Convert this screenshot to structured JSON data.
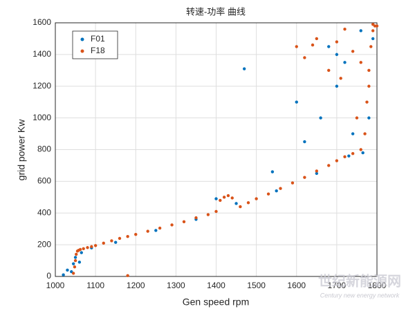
{
  "chart_data": {
    "type": "scatter",
    "title": "转速-功率 曲线",
    "x_label": "Gen speed rpm",
    "y_label": "grid power Kw",
    "xlim": [
      1000,
      1800
    ],
    "xticks": [
      1000,
      1100,
      1200,
      1300,
      1400,
      1500,
      1600,
      1700,
      1800
    ],
    "ylim": [
      0,
      1600
    ],
    "yticks": [
      0,
      200,
      400,
      600,
      800,
      1000,
      1200,
      1400,
      1600
    ],
    "grid": true,
    "legend": "upper-left",
    "watermark": [
      "世纪新能源网",
      "Century new energy network"
    ],
    "series": [
      {
        "name": "F01",
        "color": "#0072bd",
        "x": [
          1040,
          1045,
          1050,
          1060,
          1065,
          1090,
          1150,
          1250,
          1350,
          1450,
          1550,
          1650,
          1730,
          1765,
          1780,
          1790,
          1700,
          1660,
          1620,
          1600,
          1760,
          1740,
          1720,
          1680,
          1540,
          1470,
          1020,
          1030,
          1400,
          1700
        ],
        "values": [
          30,
          80,
          120,
          90,
          150,
          180,
          215,
          290,
          360,
          460,
          540,
          650,
          760,
          780,
          1000,
          1500,
          1200,
          1000,
          850,
          1100,
          1550,
          900,
          1350,
          1450,
          660,
          1310,
          10,
          40,
          490,
          1400
        ]
      },
      {
        "name": "F18",
        "color": "#d95319",
        "x": [
          1045,
          1048,
          1050,
          1052,
          1055,
          1058,
          1062,
          1070,
          1080,
          1090,
          1100,
          1120,
          1140,
          1160,
          1180,
          1200,
          1230,
          1260,
          1290,
          1320,
          1350,
          1380,
          1400,
          1420,
          1440,
          1460,
          1480,
          1500,
          1530,
          1560,
          1590,
          1620,
          1650,
          1680,
          1700,
          1720,
          1740,
          1760,
          1770,
          1775,
          1780,
          1785,
          1790,
          1795,
          1700,
          1720,
          1740,
          1760,
          1780,
          1650,
          1600,
          1680,
          1750,
          1620,
          1790,
          1800,
          1640,
          1710,
          1410,
          1430,
          1180
        ],
        "values": [
          20,
          60,
          100,
          140,
          160,
          165,
          170,
          175,
          182,
          188,
          195,
          210,
          225,
          240,
          252,
          265,
          285,
          305,
          325,
          345,
          370,
          390,
          410,
          500,
          495,
          440,
          465,
          490,
          520,
          555,
          590,
          625,
          665,
          700,
          730,
          755,
          775,
          800,
          900,
          1100,
          1300,
          1450,
          1550,
          1580,
          1480,
          1560,
          1420,
          1350,
          1200,
          1500,
          1450,
          1300,
          1000,
          1380,
          1590,
          1580,
          1460,
          1250,
          480,
          510,
          5
        ]
      }
    ]
  }
}
